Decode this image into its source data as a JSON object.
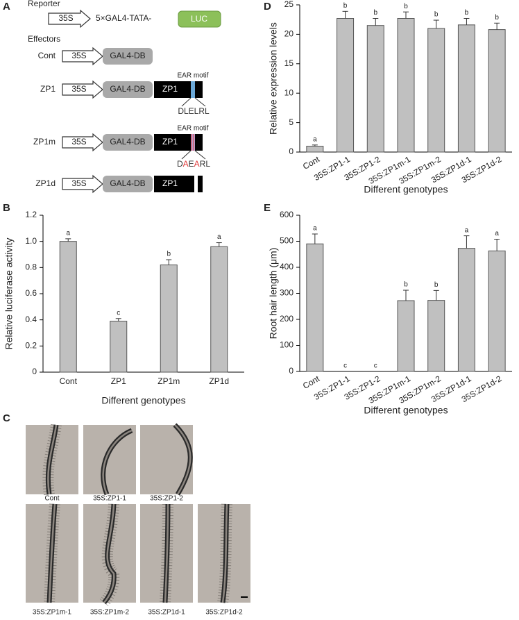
{
  "panel_labels": [
    "A",
    "B",
    "C",
    "D",
    "E"
  ],
  "diagram": {
    "reporter_heading": "Reporter",
    "reporter": {
      "promoter": "35S",
      "element": "5×GAL4-TATA-",
      "gene": "LUC"
    },
    "effectors_heading": "Effectors",
    "effectors": [
      {
        "name": "Cont",
        "promoter": "35S",
        "domain": "GAL4-DB"
      },
      {
        "name": "ZP1",
        "promoter": "35S",
        "domain": "GAL4-DB",
        "protein": "ZP1",
        "motif_label": "EAR motif",
        "motif": [
          {
            "text": "DLELRL"
          }
        ]
      },
      {
        "name": "ZP1m",
        "promoter": "35S",
        "domain": "GAL4-DB",
        "protein": "ZP1",
        "motif_label": "EAR motif",
        "motif": [
          {
            "text": "D"
          },
          {
            "text": "A",
            "color": "#e03a3a"
          },
          {
            "text": "E"
          },
          {
            "text": "A",
            "color": "#e03a3a"
          },
          {
            "text": "RL"
          }
        ]
      },
      {
        "name": "ZP1d",
        "promoter": "35S",
        "domain": "GAL4-DB",
        "protein": "ZP1"
      }
    ]
  },
  "photos": {
    "captions": [
      "Cont",
      "35S:ZP1-1",
      "35S:ZP1-2",
      "35S:ZP1m-1",
      "35S:ZP1m-2",
      "35S:ZP1d-1",
      "35S:ZP1d-2"
    ]
  },
  "chart_data": [
    {
      "type": "bar",
      "y_label": "Relative luciferase activity",
      "x_label": "Different genotypes",
      "categories": [
        "Cont",
        "ZP1",
        "ZP1m",
        "ZP1d"
      ],
      "values": [
        1.0,
        0.39,
        0.82,
        0.96
      ],
      "errors": [
        0.02,
        0.02,
        0.04,
        0.03
      ],
      "annotations": [
        "a",
        "c",
        "b",
        "a"
      ],
      "color": "#c0c0c0",
      "ylim": [
        0,
        1.2
      ],
      "yticks": [
        0,
        0.2,
        0.4,
        0.6,
        0.8,
        {
          "value": 1,
          "label": "1.0"
        },
        1.2
      ]
    },
    {
      "type": "bar",
      "y_label": "Relative expression levels",
      "x_label": "Different genotypes",
      "categories": [
        "Cont",
        "35S:ZP1-1",
        "35S:ZP1-2",
        "35S:ZP1m-1",
        "35S:ZP1m-2",
        "35S:ZP1d-1",
        "35S:ZP1d-2"
      ],
      "values": [
        1.0,
        22.7,
        21.5,
        22.7,
        21.0,
        21.6,
        20.8
      ],
      "errors": [
        0.2,
        1.2,
        1.2,
        1.1,
        1.4,
        1.1,
        1.1
      ],
      "annotations": [
        "a",
        "b",
        "b",
        "b",
        "b",
        "b",
        "b"
      ],
      "color": "#c0c0c0",
      "ylim": [
        0,
        25
      ],
      "yticks": [
        0,
        5,
        10,
        15,
        20,
        25
      ]
    },
    {
      "type": "bar",
      "y_label": "Root hair length (μm)",
      "x_label": "Different genotypes",
      "categories": [
        "Cont",
        "35S:ZP1-1",
        "35S:ZP1-2",
        "35S:ZP1m-1",
        "35S:ZP1m-2",
        "35S:ZP1d-1",
        "35S:ZP1d-2"
      ],
      "values": [
        490,
        0,
        0,
        272,
        273,
        473,
        463
      ],
      "errors": [
        38,
        0,
        0,
        40,
        38,
        48,
        45
      ],
      "annotations": [
        "a",
        "c",
        "c",
        "b",
        "b",
        "a",
        "a"
      ],
      "color": "#c0c0c0",
      "ylim": [
        0,
        600
      ],
      "yticks": [
        0,
        100,
        200,
        300,
        400,
        500,
        600
      ]
    }
  ]
}
